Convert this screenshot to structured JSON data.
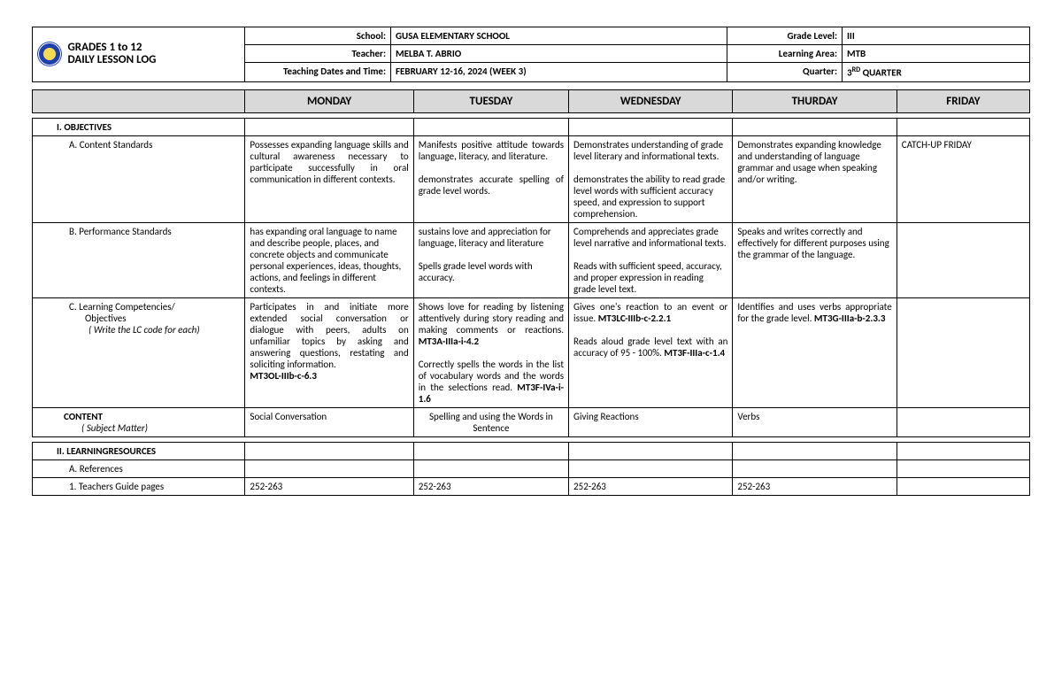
{
  "header": {
    "title_line1": "GRADES 1 to 12",
    "title_line2": "DAILY LESSON LOG",
    "rows": [
      {
        "l": "School:",
        "v": "GUSA ELEMENTARY SCHOOL",
        "r": "Grade Level:",
        "rv": "III"
      },
      {
        "l": "Teacher:",
        "v": "MELBA T. ABRIO",
        "r": "Learning Area:",
        "rv": "MTB"
      },
      {
        "l": "Teaching Dates and Time:",
        "v": "FEBRUARY 12-16, 2024 (WEEK 3)",
        "r": "Quarter:",
        "rv": "3RD QUARTER",
        "sup": "RD"
      }
    ]
  },
  "days": [
    "MONDAY",
    "TUESDAY",
    "WEDNESDAY",
    "THURDAY",
    "FRIDAY"
  ],
  "sections": {
    "objectives": "I.        OBJECTIVES",
    "contentStd": "A.    Content Standards",
    "perfStd": "B.    Performance Standards",
    "lc_line1": "C.    Learning Competencies/",
    "lc_line2": "Objectives",
    "lc_line3": "( Write the LC code for each)",
    "content": "CONTENT",
    "subject": "( Subject Matter)",
    "lr": "II.    LEARNINGRESOURCES",
    "refs": "A.    References",
    "tg": "1.    Teachers Guide pages"
  },
  "rows": {
    "contentStd": {
      "mon": "Possesses expanding language skills and cultural awareness necessary to participate successfully in oral communication in different contexts.",
      "tue": "Manifests positive attitude towards language, literacy, and literature.\n\ndemonstrates accurate spelling of grade level words.",
      "wed": "Demonstrates understanding of grade level literary and informational texts.\n\ndemonstrates the ability to read grade level words with sufficient accuracy speed, and expression to support comprehension.",
      "thu": "Demonstrates expanding knowledge and understanding of language grammar and usage when speaking and/or writing.",
      "fri": "CATCH-UP FRIDAY"
    },
    "perfStd": {
      "mon": "has expanding oral language to name and describe people, places, and concrete objects and communicate personal experiences, ideas, thoughts, actions, and feelings in different contexts.",
      "tue": "sustains love and appreciation for language, literacy and literature\n\nSpells grade level words with accuracy.",
      "wed": "Comprehends and appreciates grade level narrative and informational texts.\n\nReads with sufficient speed, accuracy, and proper expression in reading grade level text.",
      "thu": "Speaks and writes correctly and effectively for different purposes using the grammar of the language.",
      "fri": ""
    },
    "lc": {
      "mon": "Participates in and initiate more extended social conversation or dialogue with peers, adults on unfamiliar topics by asking and answering questions, restating and soliciting information.\nMT3OL-IIIb-c-6.3",
      "tue": "Shows love for reading by listening attentively during story reading and making comments or reactions. MT3A-IIIa-i-4.2\n\nCorrectly spells the words in the list of vocabulary words and the words in the selections read. MT3F-IVa-i-1.6",
      "wed": "Gives one's reaction to an event or issue. MT3LC-IIIb-c-2.2.1\n\nReads aloud grade level text with an accuracy of 95 - 100%. MT3F-IIIa-c-1.4",
      "thu": "Identifies and uses verbs appropriate for the grade level. MT3G-IIIa-b-2.3.3",
      "fri": ""
    },
    "content": {
      "mon": "Social Conversation",
      "tue": "Spelling and using the Words in Sentence",
      "wed": "Giving Reactions",
      "thu": "Verbs",
      "fri": ""
    },
    "tg": {
      "mon": "252-263",
      "tue": "252-263",
      "wed": "252-263",
      "thu": "252-263",
      "fri": ""
    }
  }
}
